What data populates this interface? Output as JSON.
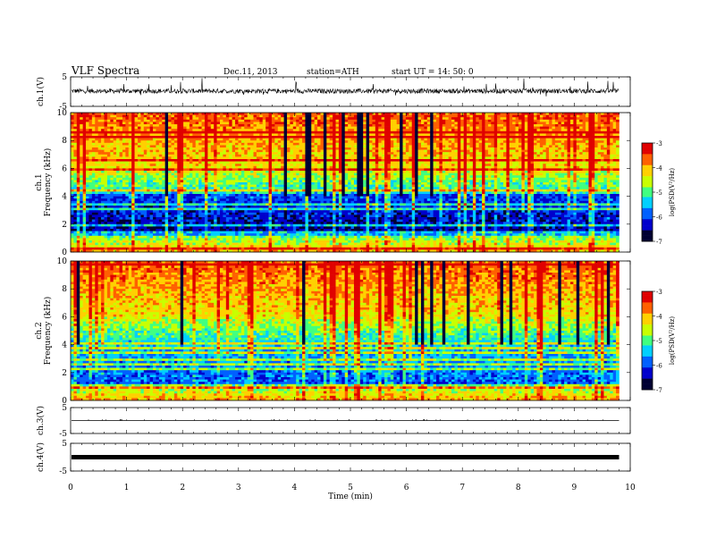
{
  "header": {
    "title": "VLF  Spectra",
    "date": "Dec.11, 2013",
    "station": "station=ATH",
    "start": "start  UT =   14: 50: 0"
  },
  "colors": {
    "colormap": [
      "#000033",
      "#0000cc",
      "#0060ff",
      "#00d0ff",
      "#40ff80",
      "#c8ff00",
      "#ffd000",
      "#ff6000",
      "#e00000",
      "#ffffff"
    ],
    "trace": "#000000"
  },
  "chart_data": [
    {
      "type": "line",
      "name": "ch1-waveform",
      "ylabel": "ch.1(V)",
      "ylim": [
        -5,
        5
      ],
      "yticks": [
        "5",
        "-5"
      ],
      "xlim": [
        0,
        10
      ],
      "baseline": 0.2,
      "noise_amplitude": 0.8,
      "spike_amplitude": 2.8
    },
    {
      "type": "heatmap",
      "name": "ch1-spectrogram",
      "ylabel": "ch.1\nFrequency (kHz)",
      "ylabel_lines": [
        "ch.1",
        "Frequency (kHz)"
      ],
      "ylim": [
        0,
        10
      ],
      "yticks": [
        "0",
        "2",
        "4",
        "6",
        "8",
        "10"
      ],
      "xlim": [
        0,
        10
      ],
      "data_end_min": 9.8,
      "z_label": "log(PSD(V²/Hz)",
      "zlim": [
        -7,
        -3
      ],
      "zticks": [
        "-3",
        "-4",
        "-5",
        "-6",
        "-7"
      ]
    },
    {
      "type": "heatmap",
      "name": "ch2-spectrogram",
      "ylabel": "ch.2\nFrequency (kHz)",
      "ylabel_lines": [
        "ch.2",
        "Frequency (kHz)"
      ],
      "ylim": [
        0,
        10
      ],
      "yticks": [
        "0",
        "2",
        "4",
        "6",
        "8",
        "10"
      ],
      "xlim": [
        0,
        10
      ],
      "data_end_min": 9.8,
      "z_label": "log(PSD(V²/Hz)",
      "zlim": [
        -7,
        -3
      ],
      "zticks": [
        "-3",
        "-4",
        "-5",
        "-6",
        "-7"
      ]
    },
    {
      "type": "line",
      "name": "ch3-waveform",
      "ylabel": "ch.3(V)",
      "ylim": [
        -5,
        5
      ],
      "yticks": [
        "5",
        "-5"
      ],
      "xlim": [
        0,
        10
      ],
      "baseline": 0.0
    },
    {
      "type": "line",
      "name": "ch4-waveform",
      "ylabel": "ch.4(V)",
      "ylim": [
        -5,
        5
      ],
      "yticks": [
        "5",
        "-5"
      ],
      "xlim": [
        0,
        10
      ],
      "baseline": 0.0
    }
  ],
  "x_axis": {
    "label": "Time  (min)",
    "ticks": [
      "0",
      "1",
      "2",
      "3",
      "4",
      "5",
      "6",
      "7",
      "8",
      "9",
      "10"
    ]
  }
}
